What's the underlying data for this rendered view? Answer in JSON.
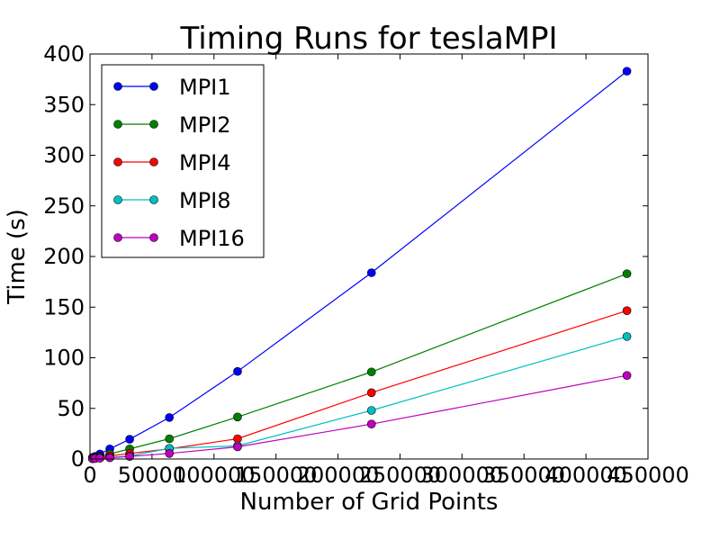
{
  "chart_data": {
    "type": "line",
    "title": "Timing Runs for teslaMPI",
    "xlabel": "Number of Grid Points",
    "ylabel": "Time (s)",
    "xlim": [
      0,
      450000
    ],
    "ylim": [
      0,
      400
    ],
    "xticks": [
      0,
      50000,
      100000,
      150000,
      200000,
      250000,
      300000,
      350000,
      400000,
      450000
    ],
    "xtick_labels": [
      "0",
      "50000",
      "100000",
      "150000",
      "200000",
      "250000",
      "300000",
      "350000",
      "400000",
      "450000"
    ],
    "yticks": [
      0,
      50,
      100,
      150,
      200,
      250,
      300,
      350,
      400
    ],
    "ytick_labels": [
      "0",
      "50",
      "100",
      "150",
      "200",
      "250",
      "300",
      "350",
      "400"
    ],
    "grid": false,
    "legend_position": "top-left",
    "series": [
      {
        "name": "MPI1",
        "color": "#0000ff",
        "points": [
          [
            2000,
            1.5
          ],
          [
            4000,
            2.5
          ],
          [
            8000,
            5
          ],
          [
            16000,
            10
          ],
          [
            32000,
            19.5
          ],
          [
            64000,
            41
          ],
          [
            119000,
            86.5
          ],
          [
            227000,
            184
          ],
          [
            433000,
            383
          ]
        ]
      },
      {
        "name": "MPI2",
        "color": "#008000",
        "points": [
          [
            2000,
            1
          ],
          [
            4000,
            1.5
          ],
          [
            8000,
            2.5
          ],
          [
            16000,
            5
          ],
          [
            32000,
            10
          ],
          [
            64000,
            20
          ],
          [
            119000,
            41.5
          ],
          [
            227000,
            86
          ],
          [
            433000,
            183
          ]
        ]
      },
      {
        "name": "MPI4",
        "color": "#ff0000",
        "points": [
          [
            2000,
            0.5
          ],
          [
            4000,
            1
          ],
          [
            8000,
            1.5
          ],
          [
            16000,
            3
          ],
          [
            32000,
            5.5
          ],
          [
            64000,
            10
          ],
          [
            119000,
            20
          ],
          [
            227000,
            65.5
          ],
          [
            433000,
            146.5
          ]
        ]
      },
      {
        "name": "MPI8",
        "color": "#00bfbf",
        "points": [
          [
            2000,
            0.3
          ],
          [
            4000,
            0.6
          ],
          [
            8000,
            1
          ],
          [
            16000,
            1.5
          ],
          [
            32000,
            3
          ],
          [
            64000,
            10.5
          ],
          [
            119000,
            13
          ],
          [
            227000,
            48
          ],
          [
            433000,
            121
          ]
        ]
      },
      {
        "name": "MPI16",
        "color": "#bf00bf",
        "points": [
          [
            2000,
            0.3
          ],
          [
            4000,
            0.5
          ],
          [
            8000,
            0.8
          ],
          [
            16000,
            1.2
          ],
          [
            32000,
            2.5
          ],
          [
            64000,
            5.5
          ],
          [
            119000,
            12
          ],
          [
            227000,
            34.5
          ],
          [
            433000,
            82.5
          ]
        ]
      }
    ]
  }
}
